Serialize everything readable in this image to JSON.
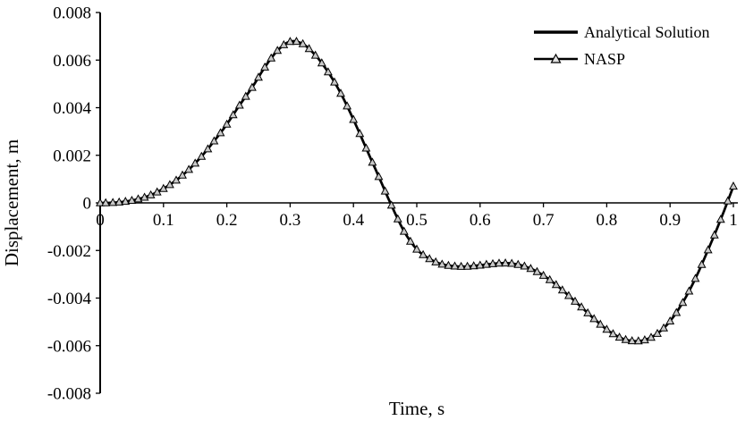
{
  "figure": {
    "background": "#ffffff",
    "text_color": "#000000"
  },
  "chart_data": {
    "type": "line",
    "title": "",
    "xlabel": "Time, s",
    "ylabel": "Displacement, m",
    "xlim": [
      0,
      1
    ],
    "ylim": [
      -0.008,
      0.008
    ],
    "grid": false,
    "legend_position": "top-right",
    "xticks": {
      "values": [
        0,
        0.1,
        0.2,
        0.3,
        0.4,
        0.5,
        0.6,
        0.7,
        0.8,
        0.9,
        1
      ],
      "labels": [
        "0",
        "0.1",
        "0.2",
        "0.3",
        "0.4",
        "0.5",
        "0.6",
        "0.7",
        "0.8",
        "0.9",
        "1"
      ]
    },
    "yticks": {
      "values": [
        0.008,
        0.006,
        0.004,
        0.002,
        0,
        -0.002,
        -0.004,
        -0.006,
        -0.008
      ],
      "labels": [
        "0.008",
        "0.006",
        "0.004",
        "0.002",
        "0",
        "-0.002",
        "-0.004",
        "-0.006",
        "-0.008"
      ]
    },
    "x": [
      0,
      0.02,
      0.04,
      0.06,
      0.08,
      0.1,
      0.12,
      0.14,
      0.16,
      0.18,
      0.2,
      0.22,
      0.24,
      0.26,
      0.28,
      0.3,
      0.32,
      0.34,
      0.36,
      0.38,
      0.4,
      0.42,
      0.44,
      0.46,
      0.48,
      0.5,
      0.52,
      0.54,
      0.56,
      0.58,
      0.6,
      0.62,
      0.64,
      0.66,
      0.68,
      0.7,
      0.72,
      0.74,
      0.76,
      0.78,
      0.8,
      0.82,
      0.84,
      0.86,
      0.88,
      0.9,
      0.92,
      0.94,
      0.96,
      0.98,
      1.0
    ],
    "series": [
      {
        "name": "Analytical Solution",
        "style": "solid-line",
        "color": "#000000",
        "line_width": 2.75,
        "values": [
          0,
          1e-05,
          6e-05,
          0.00016,
          0.00033,
          0.0006,
          0.00095,
          0.0014,
          0.00195,
          0.0026,
          0.0033,
          0.0041,
          0.00485,
          0.0057,
          0.0064,
          0.00678,
          0.00668,
          0.0062,
          0.0055,
          0.0046,
          0.0035,
          0.0023,
          0.0011,
          -0.0001,
          -0.0012,
          -0.00195,
          -0.00235,
          -0.00258,
          -0.00266,
          -0.00267,
          -0.00262,
          -0.00256,
          -0.00253,
          -0.00259,
          -0.00276,
          -0.00305,
          -0.00344,
          -0.0039,
          -0.00438,
          -0.00487,
          -0.00532,
          -0.00565,
          -0.0058,
          -0.00576,
          -0.00549,
          -0.00497,
          -0.00419,
          -0.00318,
          -0.00198,
          -0.0007,
          0.0007
        ]
      },
      {
        "name": "NASP",
        "style": "triangle-markers",
        "marker": "triangle-up",
        "marker_fill": "#c9c9c9",
        "marker_edge": "#000000",
        "values": [
          0,
          1e-05,
          6e-05,
          0.00016,
          0.00033,
          0.0006,
          0.00095,
          0.0014,
          0.00195,
          0.0026,
          0.0033,
          0.0041,
          0.00485,
          0.0057,
          0.0064,
          0.00678,
          0.00668,
          0.0062,
          0.0055,
          0.0046,
          0.0035,
          0.0023,
          0.0011,
          -0.0001,
          -0.0012,
          -0.00195,
          -0.00235,
          -0.00258,
          -0.00266,
          -0.00267,
          -0.00262,
          -0.00256,
          -0.00253,
          -0.00259,
          -0.00276,
          -0.00305,
          -0.00344,
          -0.0039,
          -0.00438,
          -0.00487,
          -0.00532,
          -0.00565,
          -0.0058,
          -0.00576,
          -0.00549,
          -0.00497,
          -0.00419,
          -0.00318,
          -0.00198,
          -0.0007,
          0.0007
        ]
      }
    ]
  }
}
